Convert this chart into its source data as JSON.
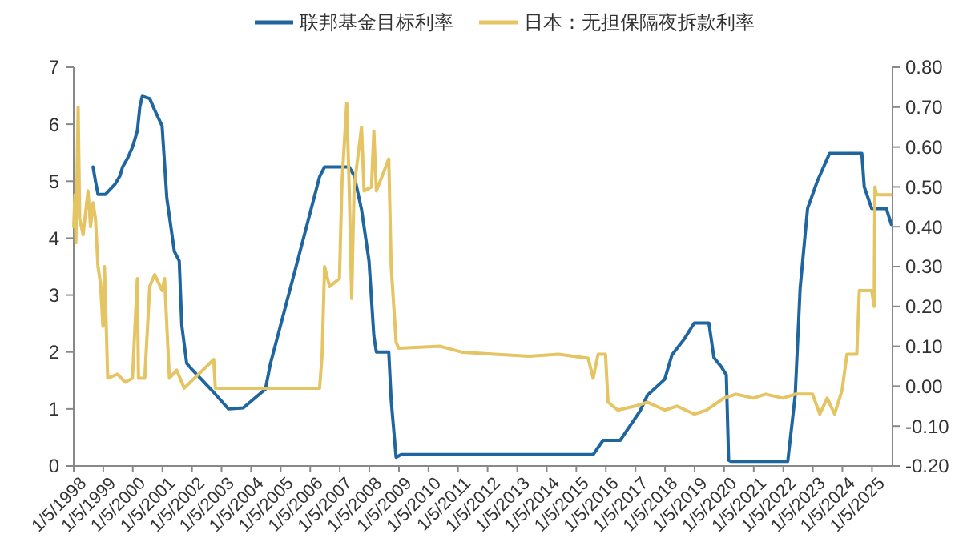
{
  "chart_data": {
    "type": "line",
    "legend": "top",
    "grid": false,
    "marker": "none",
    "line_style": "solid",
    "xlim": [
      "1998-01-05",
      "2025-09-15"
    ],
    "xticks": [
      {
        "value": "1998-01-05",
        "label": "1/5/1998"
      },
      {
        "value": "1999-01-05",
        "label": "1/5/1999"
      },
      {
        "value": "2000-01-05",
        "label": "1/5/2000"
      },
      {
        "value": "2001-01-05",
        "label": "1/5/2001"
      },
      {
        "value": "2002-01-05",
        "label": "1/5/2002"
      },
      {
        "value": "2003-01-05",
        "label": "1/5/2003"
      },
      {
        "value": "2004-01-05",
        "label": "1/5/2004"
      },
      {
        "value": "2005-01-05",
        "label": "1/5/2005"
      },
      {
        "value": "2006-01-05",
        "label": "1/5/2006"
      },
      {
        "value": "2007-01-05",
        "label": "1/5/2007"
      },
      {
        "value": "2008-01-05",
        "label": "1/5/2008"
      },
      {
        "value": "2009-01-05",
        "label": "1/5/2009"
      },
      {
        "value": "2010-01-05",
        "label": "1/5/2010"
      },
      {
        "value": "2011-01-05",
        "label": "1/5/2011"
      },
      {
        "value": "2012-01-05",
        "label": "1/5/2012"
      },
      {
        "value": "2013-01-05",
        "label": "1/5/2013"
      },
      {
        "value": "2014-01-05",
        "label": "1/5/2014"
      },
      {
        "value": "2015-01-05",
        "label": "1/5/2015"
      },
      {
        "value": "2016-01-05",
        "label": "1/5/2016"
      },
      {
        "value": "2017-01-05",
        "label": "1/5/2017"
      },
      {
        "value": "2018-01-05",
        "label": "1/5/2018"
      },
      {
        "value": "2019-01-05",
        "label": "1/5/2019"
      },
      {
        "value": "2020-01-05",
        "label": "1/5/2020"
      },
      {
        "value": "2021-01-05",
        "label": "1/5/2021"
      },
      {
        "value": "2022-01-05",
        "label": "1/5/2022"
      },
      {
        "value": "2023-01-05",
        "label": "1/5/2023"
      },
      {
        "value": "2024-01-05",
        "label": "1/5/2024"
      },
      {
        "value": "2025-01-05",
        "label": "1/5/2025"
      }
    ],
    "ylim": [
      0,
      7
    ],
    "yticks": [
      0,
      1,
      2,
      3,
      4,
      5,
      6,
      7
    ],
    "y2lim": [
      -0.2,
      0.8
    ],
    "y2ticks": [
      {
        "value": -0.2,
        "label": "-0.20"
      },
      {
        "value": -0.1,
        "label": "-0.10"
      },
      {
        "value": 0,
        "label": "0.00"
      },
      {
        "value": 0.1,
        "label": "0.10"
      },
      {
        "value": 0.2,
        "label": "0.20"
      },
      {
        "value": 0.3,
        "label": "0.30"
      },
      {
        "value": 0.4,
        "label": "0.40"
      },
      {
        "value": 0.5,
        "label": "0.50"
      },
      {
        "value": 0.6,
        "label": "0.60"
      },
      {
        "value": 0.7,
        "label": "0.70"
      },
      {
        "value": 0.8,
        "label": "0.80"
      }
    ],
    "series": [
      {
        "name": "联邦基金目标利率",
        "color": "#1f65a0",
        "x": [
          "1998-09",
          "1998-10",
          "1998-11",
          "1999-02",
          "1999-06",
          "1999-08",
          "1999-09",
          "1999-11",
          "2000-01",
          "2000-03",
          "2000-04",
          "2000-05",
          "2000-08",
          "2000-10",
          "2001-01",
          "2001-03",
          "2001-06",
          "2001-08",
          "2001-09",
          "2001-11",
          "2002-01",
          "2002-07",
          "2002-10",
          "2003-04",
          "2003-10",
          "2004-07",
          "2004-09",
          "2005-08",
          "2006-05",
          "2006-07",
          "2007-05",
          "2007-07",
          "2007-10",
          "2008-01",
          "2008-03",
          "2008-04",
          "2008-09",
          "2008-10",
          "2008-12",
          "2009-02",
          "2015-08",
          "2015-12",
          "2016-07",
          "2017-03",
          "2017-06",
          "2018-01",
          "2018-04",
          "2018-09",
          "2019-01",
          "2019-07",
          "2019-09",
          "2019-12",
          "2020-02",
          "2020-03",
          "2020-04",
          "2022-03",
          "2022-06",
          "2022-08",
          "2022-11",
          "2023-03",
          "2023-08",
          "2024-09",
          "2024-10",
          "2025-01",
          "2025-07",
          "2025-09"
        ],
        "values": [
          5.25,
          5.0,
          4.77,
          4.77,
          4.95,
          5.1,
          5.25,
          5.4,
          5.6,
          5.88,
          6.3,
          6.49,
          6.45,
          6.25,
          5.97,
          4.7,
          3.77,
          3.6,
          2.47,
          1.8,
          1.7,
          1.43,
          1.29,
          1.0,
          1.02,
          1.35,
          1.8,
          3.6,
          5.08,
          5.25,
          5.25,
          5.1,
          4.5,
          3.6,
          2.28,
          2.0,
          2.0,
          1.15,
          0.15,
          0.2,
          0.2,
          0.45,
          0.45,
          0.96,
          1.24,
          1.52,
          1.95,
          2.23,
          2.51,
          2.51,
          1.9,
          1.74,
          1.6,
          0.1,
          0.08,
          0.08,
          1.24,
          3.12,
          4.52,
          5.0,
          5.49,
          5.49,
          4.9,
          4.52,
          4.52,
          4.24
        ]
      },
      {
        "name": "日本：无担保隔夜拆款利率",
        "color": "#e5c463",
        "axis": "y2",
        "x": [
          "1998-01-05",
          "1998-01-20",
          "1998-02",
          "1998-03",
          "1998-03-20",
          "1998-05",
          "1998-07",
          "1998-08",
          "1998-09",
          "1998-10",
          "1998-11",
          "1998-12",
          "1999-01",
          "1999-01-20",
          "1999-02",
          "1999-03",
          "1999-07",
          "1999-10",
          "2000-01",
          "2000-03",
          "2000-03-15",
          "2000-06",
          "2000-08",
          "2000-10",
          "2001-01",
          "2001-02",
          "2001-03",
          "2001-04",
          "2001-07",
          "2001-10",
          "2002-10",
          "2002-10-20",
          "2005-06",
          "2006-05",
          "2006-06",
          "2006-07",
          "2006-09",
          "2007-01",
          "2007-02",
          "2007-04",
          "2007-05",
          "2007-06",
          "2007-07",
          "2007-10",
          "2007-11",
          "2008-02",
          "2008-03",
          "2008-04",
          "2008-09",
          "2008-10",
          "2008-12",
          "2009-01",
          "2010-06",
          "2011-03",
          "2012-04",
          "2013-06",
          "2014-06",
          "2015-06",
          "2015-08",
          "2015-10",
          "2016-01",
          "2016-02",
          "2016-06",
          "2017-01",
          "2017-06",
          "2018-01",
          "2018-06",
          "2019-01",
          "2019-06",
          "2020-01",
          "2020-06",
          "2021-01",
          "2021-06",
          "2022-01",
          "2022-06",
          "2023-01",
          "2023-04",
          "2023-07",
          "2023-10",
          "2024-01",
          "2024-03",
          "2024-07",
          "2024-08",
          "2025-01",
          "2025-02",
          "2025-02-10",
          "2025-03",
          "2025-09"
        ],
        "values": [
          0.4,
          0.48,
          0.36,
          0.7,
          0.42,
          0.38,
          0.49,
          0.4,
          0.46,
          0.42,
          0.3,
          0.26,
          0.15,
          0.3,
          0.22,
          0.02,
          0.03,
          0.01,
          0.02,
          0.27,
          0.02,
          0.02,
          0.25,
          0.28,
          0.24,
          0.27,
          0.15,
          0.02,
          0.04,
          -0.005,
          0.067,
          -0.005,
          -0.005,
          -0.005,
          0.08,
          0.3,
          0.25,
          0.27,
          0.51,
          0.71,
          0.5,
          0.22,
          0.5,
          0.65,
          0.49,
          0.5,
          0.64,
          0.49,
          0.57,
          0.3,
          0.11,
          0.095,
          0.1,
          0.085,
          0.08,
          0.075,
          0.08,
          0.07,
          0.02,
          0.08,
          0.08,
          -0.04,
          -0.06,
          -0.05,
          -0.04,
          -0.06,
          -0.05,
          -0.07,
          -0.06,
          -0.03,
          -0.02,
          -0.03,
          -0.02,
          -0.03,
          -0.02,
          -0.02,
          -0.07,
          -0.03,
          -0.07,
          -0.01,
          0.08,
          0.08,
          0.24,
          0.24,
          0.2,
          0.5,
          0.48,
          0.48
        ]
      }
    ]
  }
}
